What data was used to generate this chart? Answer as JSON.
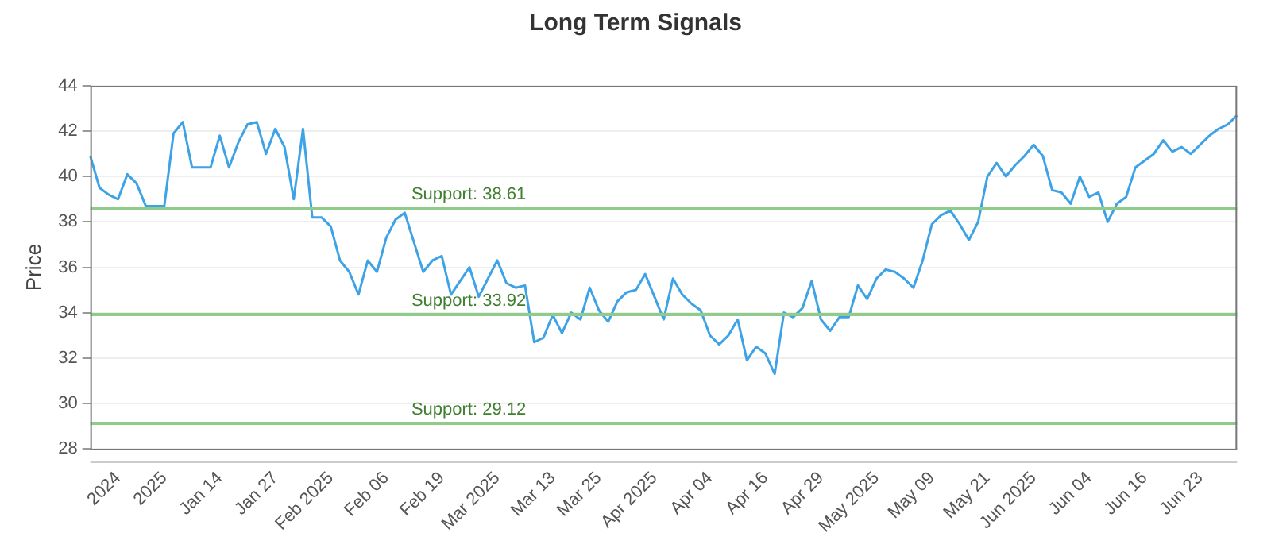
{
  "chart_data": {
    "type": "line",
    "title": "Long Term Signals",
    "ylabel": "Price",
    "categories": [
      null,
      null,
      null,
      "2024",
      null,
      null,
      null,
      null,
      "2025",
      null,
      null,
      null,
      null,
      null,
      "Jan 14",
      null,
      null,
      null,
      null,
      null,
      "Jan 27",
      null,
      null,
      null,
      null,
      null,
      "Feb 2025",
      null,
      null,
      null,
      null,
      null,
      "Feb 06",
      null,
      null,
      null,
      null,
      null,
      "Feb 19",
      null,
      null,
      null,
      null,
      null,
      "Mar 2025",
      null,
      null,
      null,
      null,
      null,
      "Mar 13",
      null,
      null,
      null,
      null,
      "Mar 25",
      null,
      null,
      null,
      null,
      null,
      "Apr 2025",
      null,
      null,
      null,
      null,
      null,
      "Apr 04",
      null,
      null,
      null,
      null,
      null,
      "Apr 16",
      null,
      null,
      null,
      null,
      null,
      "Apr 29",
      null,
      null,
      null,
      null,
      null,
      "May 2025",
      null,
      null,
      null,
      null,
      null,
      "May 09",
      null,
      null,
      null,
      null,
      null,
      "May 21",
      null,
      null,
      null,
      null,
      "Jun 2025",
      null,
      null,
      null,
      null,
      null,
      "Jun 04",
      null,
      null,
      null,
      null,
      null,
      "Jun 16",
      null,
      null,
      null,
      null,
      null,
      "Jun 23",
      null,
      null,
      null,
      null
    ],
    "series": [
      {
        "color": "#3ea3e6",
        "values": [
          40.9,
          39.5,
          39.2,
          39.0,
          40.1,
          39.7,
          38.7,
          38.7,
          38.7,
          41.9,
          42.4,
          40.4,
          40.4,
          40.4,
          41.8,
          40.4,
          41.5,
          42.3,
          42.4,
          41.0,
          42.1,
          41.3,
          39.0,
          42.1,
          38.2,
          38.2,
          37.8,
          36.3,
          35.8,
          34.8,
          36.3,
          35.8,
          37.3,
          38.1,
          38.4,
          37.1,
          35.8,
          36.3,
          36.5,
          34.8,
          35.4,
          36.0,
          34.7,
          35.5,
          36.3,
          35.3,
          35.1,
          35.2,
          32.7,
          32.9,
          33.9,
          33.1,
          34.0,
          33.7,
          35.1,
          34.1,
          33.6,
          34.5,
          34.9,
          35.0,
          35.7,
          34.7,
          33.7,
          35.5,
          34.8,
          34.4,
          34.1,
          33.0,
          32.6,
          33.0,
          33.7,
          31.9,
          32.5,
          32.2,
          31.3,
          34.0,
          33.8,
          34.2,
          35.4,
          33.7,
          33.2,
          33.8,
          33.8,
          35.2,
          34.6,
          35.5,
          35.9,
          35.8,
          35.5,
          35.1,
          36.3,
          37.9,
          38.3,
          38.5,
          37.9,
          37.2,
          38.0,
          40.0,
          40.6,
          40.0,
          40.5,
          40.9,
          41.4,
          40.9,
          39.4,
          39.3,
          38.8,
          40.0,
          39.1,
          39.3,
          38.0,
          38.8,
          39.1,
          40.4,
          40.7,
          41.0,
          41.6,
          41.1,
          41.3,
          41.0,
          41.4,
          41.8,
          42.1,
          42.3,
          42.7
        ]
      }
    ],
    "ylim": [
      28,
      44
    ],
    "yticks": [
      28,
      30,
      32,
      34,
      36,
      38,
      40,
      42,
      44
    ],
    "grid": "y",
    "legend": false,
    "marker": "none",
    "line_style": "solid",
    "ref_lines": [
      {
        "axis": "y",
        "value": 38.61,
        "label": "Support: 38.61",
        "color": "#8fcc8a"
      },
      {
        "axis": "y",
        "value": 33.92,
        "label": "Support: 33.92",
        "color": "#8fcc8a"
      },
      {
        "axis": "y",
        "value": 29.12,
        "label": "Support: 29.12",
        "color": "#8fcc8a"
      }
    ]
  }
}
